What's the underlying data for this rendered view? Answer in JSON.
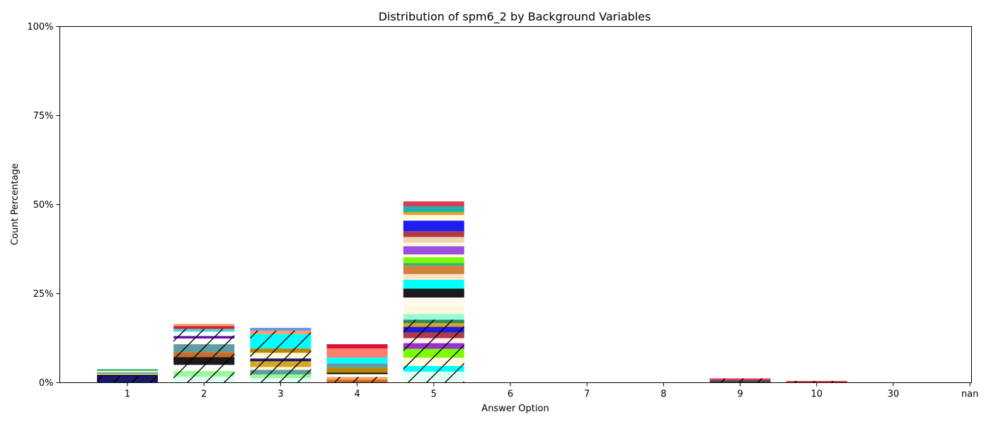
{
  "chart_data": {
    "type": "bar",
    "stacked": true,
    "title": "Distribution of spm6_2 by Background Variables",
    "xlabel": "Answer Option",
    "ylabel": "Count Percentage",
    "categories": [
      "1",
      "2",
      "3",
      "4",
      "5",
      "6",
      "7",
      "8",
      "9",
      "10",
      "30",
      "nan"
    ],
    "ylim": [
      0,
      100
    ],
    "yticks": [
      "0%",
      "25%",
      "50%",
      "75%",
      "100%"
    ],
    "ytick_values": [
      0,
      25,
      50,
      75,
      100
    ],
    "grid": false,
    "legend": "none",
    "stacks": [
      {
        "category": "1",
        "segments": [
          {
            "value": 1.8,
            "color": "#191970",
            "hatch": true
          },
          {
            "value": 0.4,
            "color": "#000000"
          },
          {
            "value": 0.3,
            "color": "#f5deb3"
          },
          {
            "value": 0.4,
            "color": "#5f9ea0"
          },
          {
            "value": 0.4,
            "color": "#fafad2"
          },
          {
            "value": 0.5,
            "color": "#3cb371"
          }
        ]
      },
      {
        "category": "2",
        "segments": [
          {
            "value": 1.7,
            "color": "#e0fff4",
            "hatch": true
          },
          {
            "value": 1.6,
            "color": "#98fb98",
            "hatch": true
          },
          {
            "value": 1.7,
            "color": "#ffffff",
            "hatch": true
          },
          {
            "value": 2.2,
            "color": "#1a1a1a",
            "hatch": true
          },
          {
            "value": 1.3,
            "color": "#d2691e",
            "hatch": true
          },
          {
            "value": 2.3,
            "color": "#5f9ea0",
            "hatch": true
          },
          {
            "value": 1.6,
            "color": "#ffffff",
            "hatch": true
          },
          {
            "value": 0.7,
            "color": "#6a0dad",
            "hatch": true
          },
          {
            "value": 1.2,
            "color": "#ffffff",
            "hatch": true
          },
          {
            "value": 0.8,
            "color": "#40e0d0",
            "hatch": true
          },
          {
            "value": 0.8,
            "color": "#dc143c"
          },
          {
            "value": 0.6,
            "color": "#f4a460"
          }
        ]
      },
      {
        "category": "3",
        "segments": [
          {
            "value": 1.3,
            "color": "#e0fff4",
            "hatch": true
          },
          {
            "value": 1.0,
            "color": "#98fb98",
            "hatch": true
          },
          {
            "value": 1.3,
            "color": "#5f9ea0",
            "hatch": true
          },
          {
            "value": 0.8,
            "color": "#fafad2",
            "hatch": true
          },
          {
            "value": 1.6,
            "color": "#daa520",
            "hatch": true
          },
          {
            "value": 0.8,
            "color": "#191970",
            "hatch": true
          },
          {
            "value": 1.6,
            "color": "#fffacd",
            "hatch": true
          },
          {
            "value": 1.2,
            "color": "#b8860b",
            "hatch": true
          },
          {
            "value": 1.8,
            "color": "#00ffff",
            "hatch": true
          },
          {
            "value": 2.2,
            "color": "#00ffff",
            "hatch": true
          },
          {
            "value": 1.0,
            "color": "#f4a460",
            "hatch": true
          },
          {
            "value": 0.8,
            "color": "#6495ed"
          }
        ]
      },
      {
        "category": "4",
        "segments": [
          {
            "value": 0.8,
            "color": "#d2691e",
            "hatch": true
          },
          {
            "value": 0.8,
            "color": "#f4a460",
            "hatch": true
          },
          {
            "value": 0.8,
            "color": "#ffffff"
          },
          {
            "value": 0.4,
            "color": "#000000"
          },
          {
            "value": 1.4,
            "color": "#b8860b"
          },
          {
            "value": 1.2,
            "color": "#5f9ea0"
          },
          {
            "value": 1.6,
            "color": "#00ffff"
          },
          {
            "value": 2.6,
            "color": "#fa8072"
          },
          {
            "value": 1.2,
            "color": "#dc143c"
          }
        ]
      },
      {
        "category": "5",
        "segments": [
          {
            "value": 0.3,
            "color": "#fff8dc",
            "hatch": true
          },
          {
            "value": 2.8,
            "color": "#e0fff4",
            "hatch": true
          },
          {
            "value": 1.6,
            "color": "#00ffff",
            "hatch": true
          },
          {
            "value": 2.3,
            "color": "#fff8dc",
            "hatch": true
          },
          {
            "value": 2.5,
            "color": "#7cfc00",
            "hatch": true
          },
          {
            "value": 1.6,
            "color": "#9932cc",
            "hatch": true
          },
          {
            "value": 1.4,
            "color": "#fff0f5",
            "hatch": true
          },
          {
            "value": 1.6,
            "color": "#b03a48",
            "hatch": true
          },
          {
            "value": 1.6,
            "color": "#1e1ed8",
            "hatch": true
          },
          {
            "value": 1.0,
            "color": "#daa520",
            "hatch": true
          },
          {
            "value": 1.0,
            "color": "#2e8b57",
            "hatch": true
          },
          {
            "value": 1.6,
            "color": "#98fbd8"
          },
          {
            "value": 2.3,
            "color": "#fff8dc"
          },
          {
            "value": 2.3,
            "color": "#fffaf0"
          },
          {
            "value": 2.5,
            "color": "#1a1a1a"
          },
          {
            "value": 2.5,
            "color": "#00ffff"
          },
          {
            "value": 1.6,
            "color": "#ffe4c4"
          },
          {
            "value": 2.3,
            "color": "#d2803c"
          },
          {
            "value": 0.8,
            "color": "#3cb371"
          },
          {
            "value": 1.6,
            "color": "#7cfc00"
          },
          {
            "value": 0.8,
            "color": "#fff8dc"
          },
          {
            "value": 2.3,
            "color": "#9b4fe0"
          },
          {
            "value": 1.0,
            "color": "#fff8dc"
          },
          {
            "value": 1.6,
            "color": "#eed5b0"
          },
          {
            "value": 1.6,
            "color": "#b03a48"
          },
          {
            "value": 3.0,
            "color": "#1e1ef0"
          },
          {
            "value": 1.6,
            "color": "#fff8dc"
          },
          {
            "value": 0.8,
            "color": "#daa520"
          },
          {
            "value": 1.6,
            "color": "#20b2aa"
          },
          {
            "value": 1.4,
            "color": "#dc3c54"
          }
        ]
      },
      {
        "category": "6",
        "segments": []
      },
      {
        "category": "7",
        "segments": []
      },
      {
        "category": "8",
        "segments": []
      },
      {
        "category": "9",
        "segments": [
          {
            "value": 0.6,
            "color": "#2f4f4f",
            "hatch": true
          },
          {
            "value": 0.6,
            "color": "#dc3c54",
            "hatch": true
          }
        ]
      },
      {
        "category": "10",
        "segments": [
          {
            "value": 0.5,
            "color": "#dc3c54",
            "hatch": true
          }
        ]
      },
      {
        "category": "30",
        "segments": []
      },
      {
        "category": "nan",
        "segments": []
      }
    ]
  }
}
